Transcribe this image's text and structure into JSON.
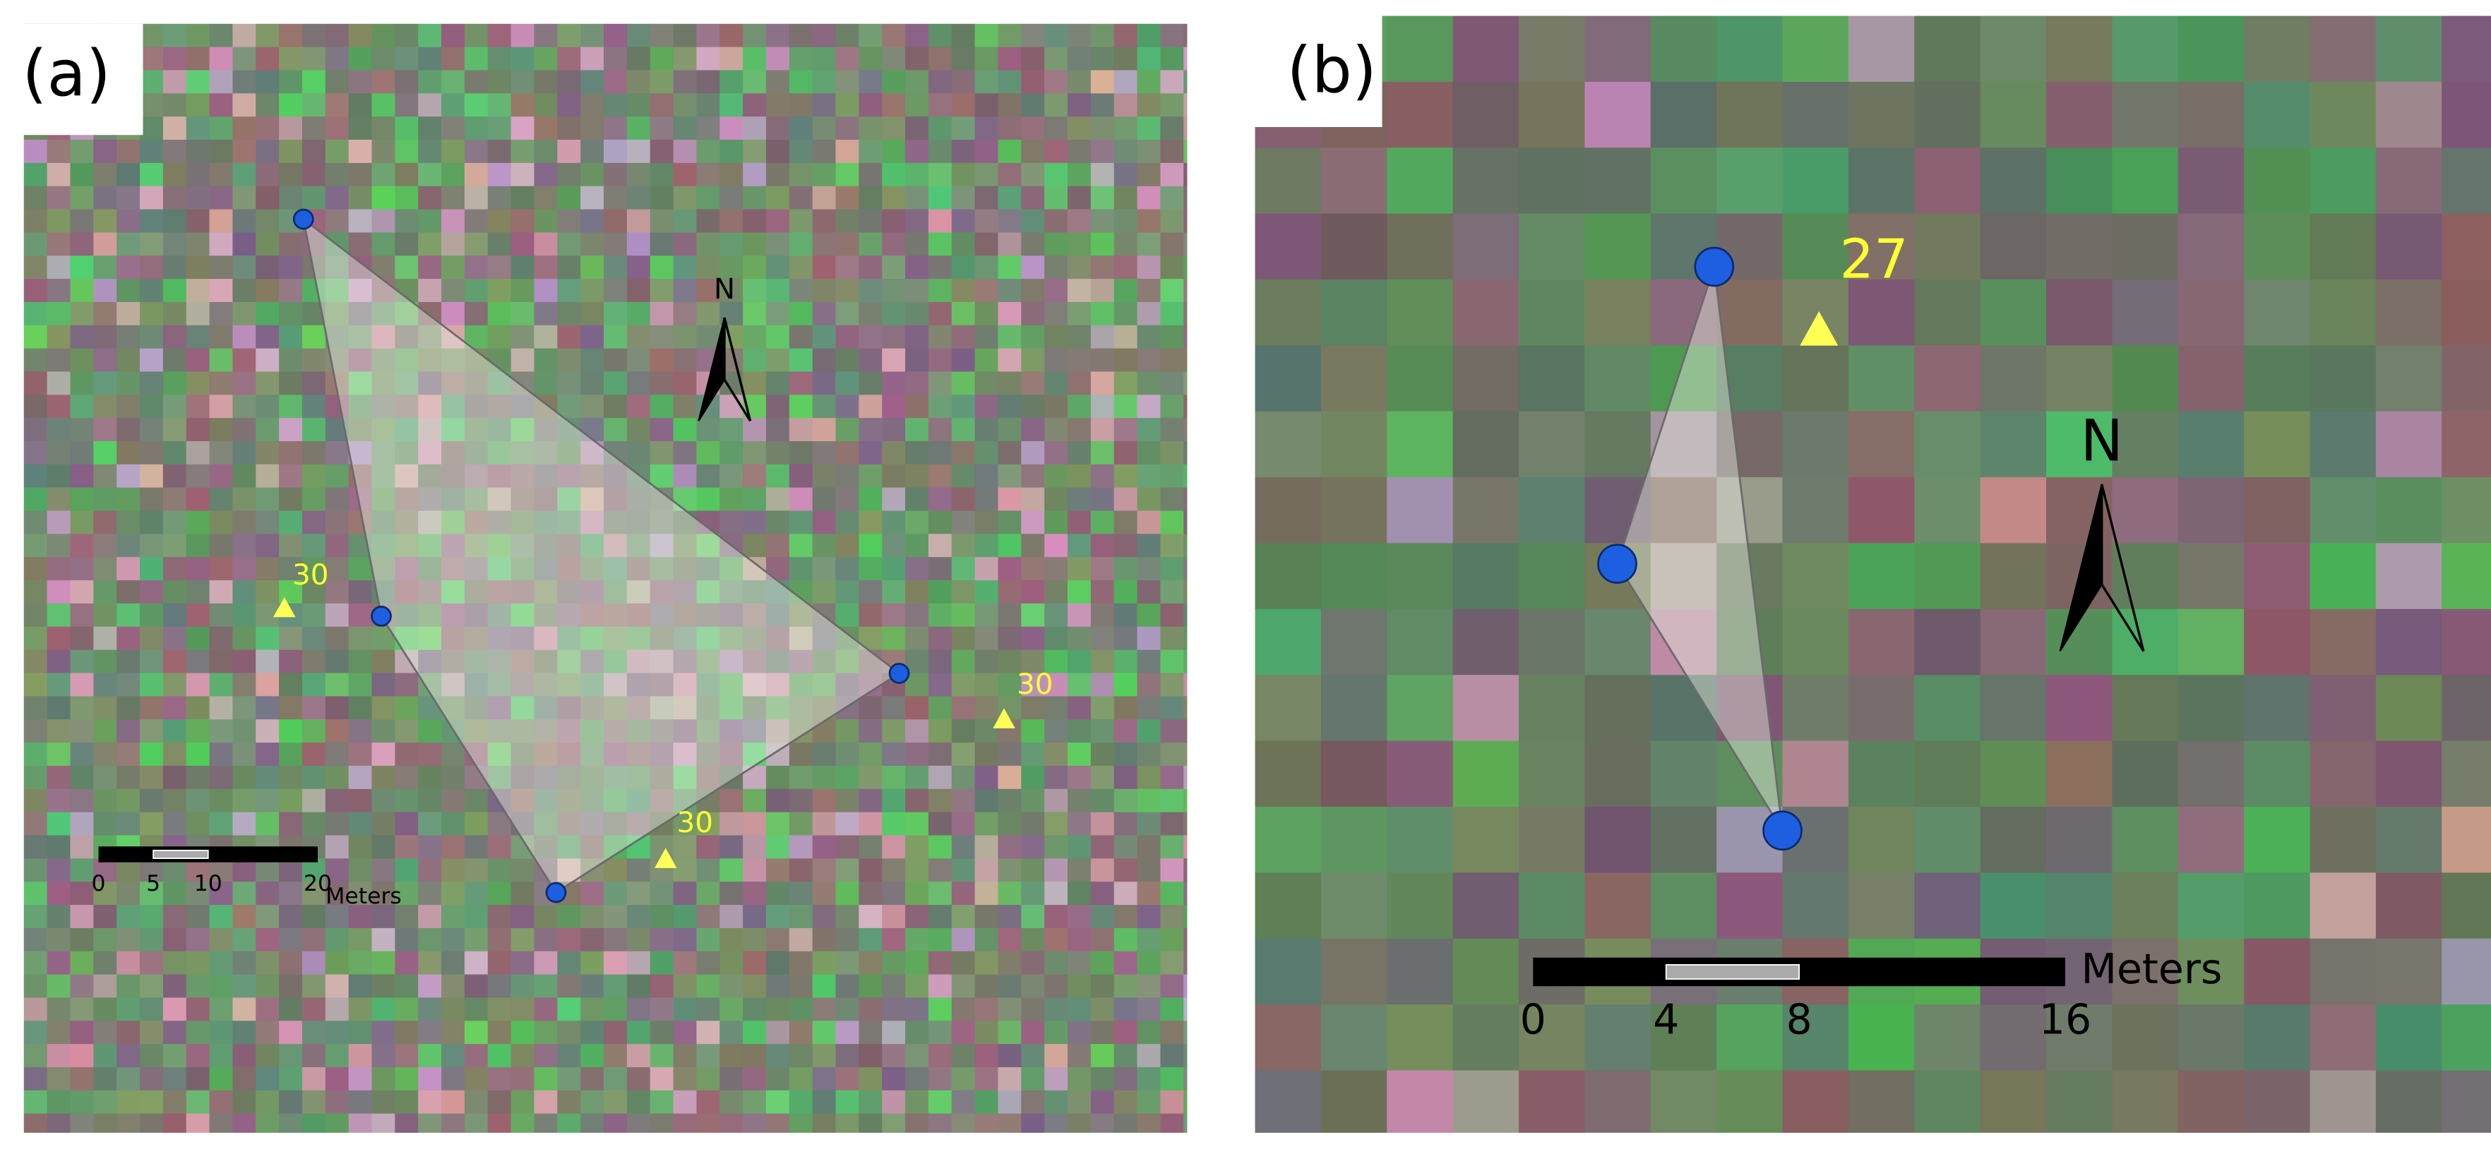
{
  "panels": [
    {
      "label": "(a)",
      "north": "N",
      "points": [
        {
          "label": "30"
        },
        {
          "label": "30"
        },
        {
          "label": "30"
        }
      ],
      "scale_bar": {
        "unit": "Meters",
        "ticks": [
          0,
          5,
          10,
          20
        ]
      }
    },
    {
      "label": "(b)",
      "north": "N",
      "points": [
        {
          "label": "27"
        }
      ],
      "scale_bar": {
        "unit": "Meters",
        "ticks": [
          0,
          4,
          8,
          16
        ]
      }
    }
  ]
}
